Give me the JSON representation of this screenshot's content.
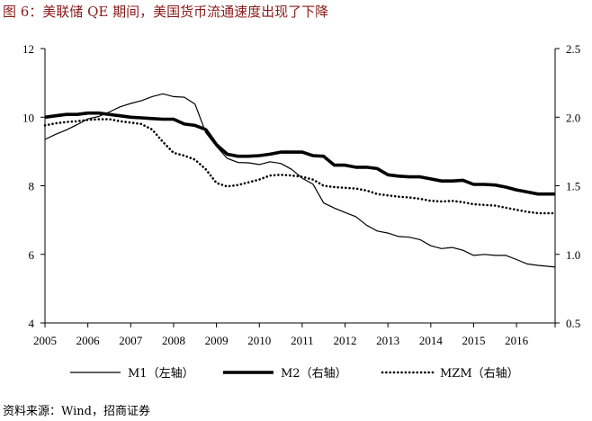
{
  "title": "图 6：美联储 QE 期间，美国货币流通速度出现了下降",
  "source": "资料来源：Wind，招商证券",
  "chart_data": {
    "type": "line",
    "left_axis": {
      "ylim": [
        4,
        12
      ],
      "ticks": [
        "4",
        "6",
        "8",
        "10",
        "12"
      ]
    },
    "right_axis": {
      "ylim": [
        0.5,
        2.5
      ],
      "ticks": [
        "0.5",
        "1.0",
        "1.5",
        "2.0",
        "2.5"
      ]
    },
    "x_axis": {
      "xlim": [
        2005,
        2016.9
      ],
      "ticks": [
        "2005",
        "2006",
        "2007",
        "2008",
        "2009",
        "2010",
        "2011",
        "2012",
        "2013",
        "2014",
        "2015",
        "2016"
      ]
    },
    "legend_position": "bottom",
    "grid": false,
    "series": [
      {
        "name": "M1（左轴）",
        "axis": "left",
        "style": "thin",
        "color": "#000000",
        "points": [
          [
            2005.0,
            9.35
          ],
          [
            2005.25,
            9.5
          ],
          [
            2005.5,
            9.63
          ],
          [
            2005.75,
            9.78
          ],
          [
            2006.0,
            9.95
          ],
          [
            2006.25,
            10.02
          ],
          [
            2006.5,
            10.15
          ],
          [
            2006.75,
            10.3
          ],
          [
            2007.0,
            10.4
          ],
          [
            2007.25,
            10.48
          ],
          [
            2007.5,
            10.6
          ],
          [
            2007.75,
            10.68
          ],
          [
            2008.0,
            10.6
          ],
          [
            2008.25,
            10.58
          ],
          [
            2008.5,
            10.38
          ],
          [
            2008.75,
            9.55
          ],
          [
            2009.0,
            9.15
          ],
          [
            2009.25,
            8.8
          ],
          [
            2009.5,
            8.68
          ],
          [
            2009.75,
            8.67
          ],
          [
            2010.0,
            8.62
          ],
          [
            2010.25,
            8.7
          ],
          [
            2010.5,
            8.65
          ],
          [
            2010.75,
            8.48
          ],
          [
            2011.0,
            8.22
          ],
          [
            2011.25,
            8.05
          ],
          [
            2011.5,
            7.5
          ],
          [
            2011.75,
            7.35
          ],
          [
            2012.0,
            7.22
          ],
          [
            2012.25,
            7.1
          ],
          [
            2012.5,
            6.85
          ],
          [
            2012.75,
            6.68
          ],
          [
            2013.0,
            6.62
          ],
          [
            2013.25,
            6.52
          ],
          [
            2013.5,
            6.5
          ],
          [
            2013.75,
            6.43
          ],
          [
            2014.0,
            6.25
          ],
          [
            2014.25,
            6.17
          ],
          [
            2014.5,
            6.2
          ],
          [
            2014.75,
            6.12
          ],
          [
            2015.0,
            5.97
          ],
          [
            2015.25,
            6.0
          ],
          [
            2015.5,
            5.97
          ],
          [
            2015.75,
            5.97
          ],
          [
            2016.0,
            5.85
          ],
          [
            2016.25,
            5.72
          ],
          [
            2016.5,
            5.68
          ],
          [
            2016.75,
            5.65
          ],
          [
            2016.9,
            5.63
          ]
        ]
      },
      {
        "name": "M2（右轴）",
        "axis": "right",
        "style": "thick",
        "color": "#000000",
        "points": [
          [
            2005.0,
            2.0
          ],
          [
            2005.25,
            2.01
          ],
          [
            2005.5,
            2.02
          ],
          [
            2005.75,
            2.02
          ],
          [
            2006.0,
            2.03
          ],
          [
            2006.25,
            2.03
          ],
          [
            2006.5,
            2.02
          ],
          [
            2006.75,
            2.01
          ],
          [
            2007.0,
            2.0
          ],
          [
            2007.25,
            1.995
          ],
          [
            2007.5,
            1.99
          ],
          [
            2007.75,
            1.985
          ],
          [
            2008.0,
            1.985
          ],
          [
            2008.25,
            1.95
          ],
          [
            2008.5,
            1.94
          ],
          [
            2008.75,
            1.91
          ],
          [
            2009.0,
            1.8
          ],
          [
            2009.25,
            1.73
          ],
          [
            2009.5,
            1.715
          ],
          [
            2009.75,
            1.715
          ],
          [
            2010.0,
            1.72
          ],
          [
            2010.25,
            1.73
          ],
          [
            2010.5,
            1.745
          ],
          [
            2010.75,
            1.745
          ],
          [
            2011.0,
            1.745
          ],
          [
            2011.25,
            1.72
          ],
          [
            2011.5,
            1.715
          ],
          [
            2011.75,
            1.65
          ],
          [
            2012.0,
            1.65
          ],
          [
            2012.25,
            1.635
          ],
          [
            2012.5,
            1.635
          ],
          [
            2012.75,
            1.625
          ],
          [
            2013.0,
            1.58
          ],
          [
            2013.25,
            1.57
          ],
          [
            2013.5,
            1.565
          ],
          [
            2013.75,
            1.565
          ],
          [
            2014.0,
            1.55
          ],
          [
            2014.25,
            1.535
          ],
          [
            2014.5,
            1.535
          ],
          [
            2014.75,
            1.54
          ],
          [
            2015.0,
            1.51
          ],
          [
            2015.25,
            1.51
          ],
          [
            2015.5,
            1.505
          ],
          [
            2015.75,
            1.49
          ],
          [
            2016.0,
            1.47
          ],
          [
            2016.25,
            1.455
          ],
          [
            2016.5,
            1.44
          ],
          [
            2016.75,
            1.44
          ],
          [
            2016.9,
            1.44
          ]
        ]
      },
      {
        "name": "MZM（右轴）",
        "axis": "right",
        "style": "dotted",
        "color": "#000000",
        "points": [
          [
            2005.0,
            1.94
          ],
          [
            2005.25,
            1.955
          ],
          [
            2005.5,
            1.965
          ],
          [
            2005.75,
            1.97
          ],
          [
            2006.0,
            1.98
          ],
          [
            2006.25,
            1.985
          ],
          [
            2006.5,
            1.985
          ],
          [
            2006.75,
            1.97
          ],
          [
            2007.0,
            1.96
          ],
          [
            2007.25,
            1.95
          ],
          [
            2007.5,
            1.91
          ],
          [
            2007.75,
            1.82
          ],
          [
            2008.0,
            1.74
          ],
          [
            2008.25,
            1.72
          ],
          [
            2008.5,
            1.69
          ],
          [
            2008.75,
            1.62
          ],
          [
            2009.0,
            1.52
          ],
          [
            2009.25,
            1.495
          ],
          [
            2009.5,
            1.505
          ],
          [
            2009.75,
            1.525
          ],
          [
            2010.0,
            1.545
          ],
          [
            2010.25,
            1.575
          ],
          [
            2010.5,
            1.58
          ],
          [
            2010.75,
            1.575
          ],
          [
            2011.0,
            1.565
          ],
          [
            2011.25,
            1.545
          ],
          [
            2011.5,
            1.5
          ],
          [
            2011.75,
            1.49
          ],
          [
            2012.0,
            1.485
          ],
          [
            2012.25,
            1.48
          ],
          [
            2012.5,
            1.465
          ],
          [
            2012.75,
            1.44
          ],
          [
            2013.0,
            1.43
          ],
          [
            2013.25,
            1.42
          ],
          [
            2013.5,
            1.415
          ],
          [
            2013.75,
            1.405
          ],
          [
            2014.0,
            1.39
          ],
          [
            2014.25,
            1.385
          ],
          [
            2014.5,
            1.39
          ],
          [
            2014.75,
            1.38
          ],
          [
            2015.0,
            1.365
          ],
          [
            2015.25,
            1.36
          ],
          [
            2015.5,
            1.355
          ],
          [
            2015.75,
            1.34
          ],
          [
            2016.0,
            1.325
          ],
          [
            2016.25,
            1.31
          ],
          [
            2016.5,
            1.3
          ],
          [
            2016.75,
            1.3
          ],
          [
            2016.9,
            1.3
          ]
        ]
      }
    ]
  }
}
